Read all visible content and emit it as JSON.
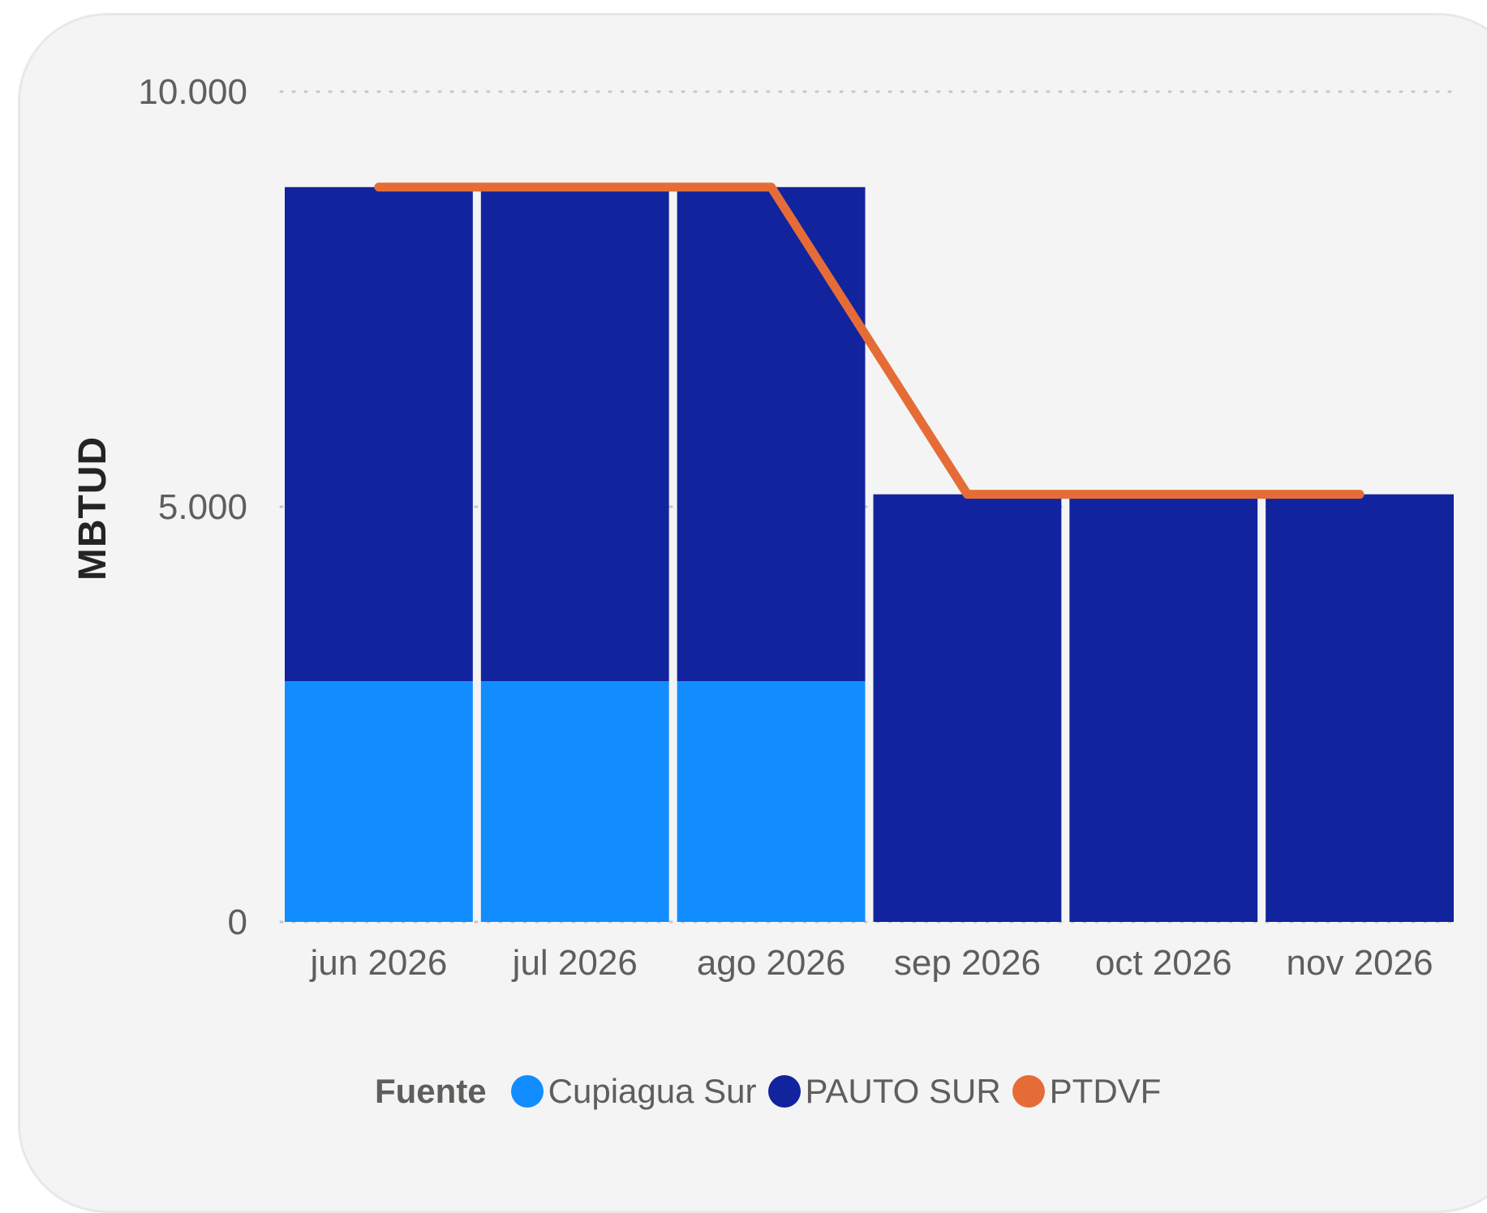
{
  "chart_data": {
    "type": "bar",
    "stacked": true,
    "categories": [
      "jun 2026",
      "jul 2026",
      "ago 2026",
      "sep 2026",
      "oct 2026",
      "nov 2026"
    ],
    "series": [
      {
        "name": "Cupiagua Sur",
        "kind": "bar",
        "color": "#118dff",
        "values": [
          2900,
          2900,
          2900,
          0,
          0,
          0
        ]
      },
      {
        "name": "PAUTO SUR",
        "kind": "bar",
        "color": "#12239e",
        "values": [
          5950,
          5950,
          5950,
          5150,
          5150,
          5150
        ]
      },
      {
        "name": "PTDVF",
        "kind": "line",
        "color": "#e66c37",
        "values": [
          8850,
          8850,
          8850,
          5150,
          5150,
          5150
        ]
      }
    ],
    "ylabel": "MBTUD",
    "yticks": [
      "0",
      "5.000",
      "10.000"
    ],
    "ytick_values": [
      0,
      5000,
      10000
    ],
    "ylim": [
      0,
      10000
    ],
    "grid": "dotted horizontal",
    "legend": {
      "title": "Fuente",
      "position": "bottom"
    }
  }
}
